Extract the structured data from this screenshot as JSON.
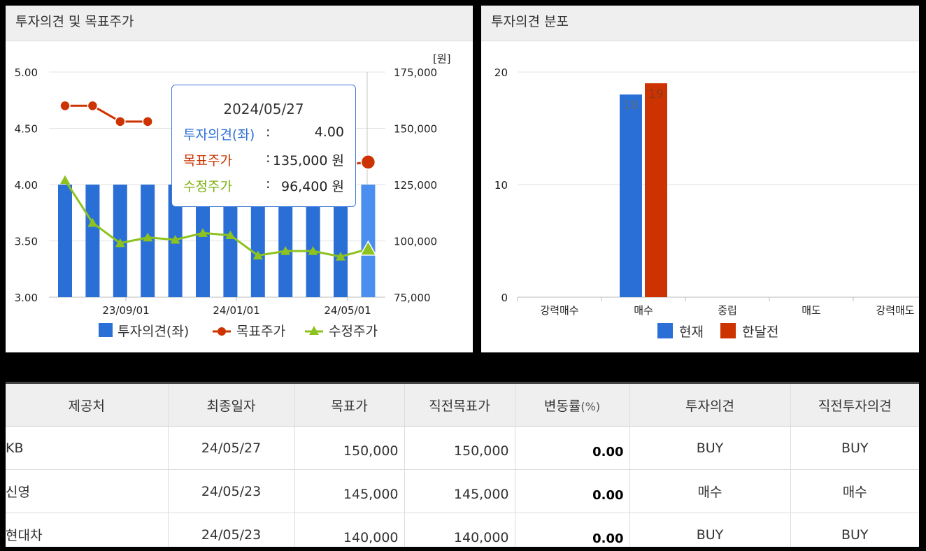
{
  "left_panel": {
    "title": "투자의견 및 목표주가"
  },
  "right_panel": {
    "title": "투자의견 분포"
  },
  "chart_data": [
    {
      "type": "bar",
      "title": "투자의견 및 목표주가",
      "left_axis": {
        "min": 3.0,
        "max": 5.0,
        "ticks": [
          "5.00",
          "4.50",
          "4.00",
          "3.50",
          "3.00"
        ]
      },
      "right_axis": {
        "unit": "[원]",
        "min": 75000,
        "max": 175000,
        "ticks": [
          "175,000",
          "150,000",
          "125,000",
          "100,000",
          "75,000"
        ]
      },
      "x_tick_labels": [
        "23/09/01",
        "24/01/01",
        "24/05/01"
      ],
      "grid": true,
      "legend_position": "bottom",
      "series": [
        {
          "name": "투자의견(좌)",
          "kind": "bar",
          "color": "#2a6fd6",
          "highlight_color": "#4a8ff0",
          "values": [
            4.0,
            4.0,
            4.0,
            4.0,
            4.0,
            4.0,
            4.0,
            4.0,
            4.0,
            4.0,
            4.0,
            4.0
          ]
        },
        {
          "name": "목표주가",
          "kind": "line",
          "color": "#cc3300",
          "values": [
            160000,
            160000,
            153000,
            153000,
            null,
            null,
            null,
            null,
            null,
            null,
            null,
            135000
          ]
        },
        {
          "name": "수정주가",
          "kind": "line",
          "color": "#8dc21f",
          "values": [
            127000,
            108000,
            99000,
            101500,
            100500,
            103500,
            102500,
            93500,
            95500,
            95500,
            93000,
            96400
          ]
        }
      ],
      "tooltip": {
        "date": "2024/05/27",
        "rows": [
          {
            "label": "투자의견(좌)",
            "sep": ":",
            "value": "4.00",
            "color": "#2a6fd6"
          },
          {
            "label": "목표주가",
            "sep": ":",
            "value": "135,000 원",
            "color": "#cc3300"
          },
          {
            "label": "수정주가",
            "sep": ":",
            "value": "96,400 원",
            "color": "#7db010"
          }
        ]
      }
    },
    {
      "type": "bar",
      "title": "투자의견 분포",
      "categories": [
        "강력매수",
        "매수",
        "중립",
        "매도",
        "강력매도"
      ],
      "y_axis": {
        "min": 0,
        "max": 20,
        "ticks": [
          "20",
          "10",
          "0"
        ]
      },
      "grid": true,
      "legend_position": "bottom",
      "series": [
        {
          "name": "현재",
          "color": "#2a6fd6",
          "values": [
            0,
            18,
            0,
            0,
            0
          ],
          "labels": [
            "",
            "18",
            "",
            "",
            ""
          ]
        },
        {
          "name": "한달전",
          "color": "#cc3300",
          "values": [
            0,
            19,
            0,
            0,
            0
          ],
          "labels": [
            "",
            "19",
            "",
            "",
            ""
          ]
        }
      ]
    }
  ],
  "table": {
    "headers": [
      "제공처",
      "최종일자",
      "목표가",
      "직전목표가",
      "변동률",
      "투자의견",
      "직전투자의견"
    ],
    "change_unit": "(%)",
    "rows": [
      [
        "KB",
        "24/05/27",
        "150,000",
        "150,000",
        "0.00",
        "BUY",
        "BUY"
      ],
      [
        "신영",
        "24/05/23",
        "145,000",
        "145,000",
        "0.00",
        "매수",
        "매수"
      ],
      [
        "현대차",
        "24/05/23",
        "140,000",
        "140,000",
        "0.00",
        "BUY",
        "BUY"
      ]
    ]
  }
}
